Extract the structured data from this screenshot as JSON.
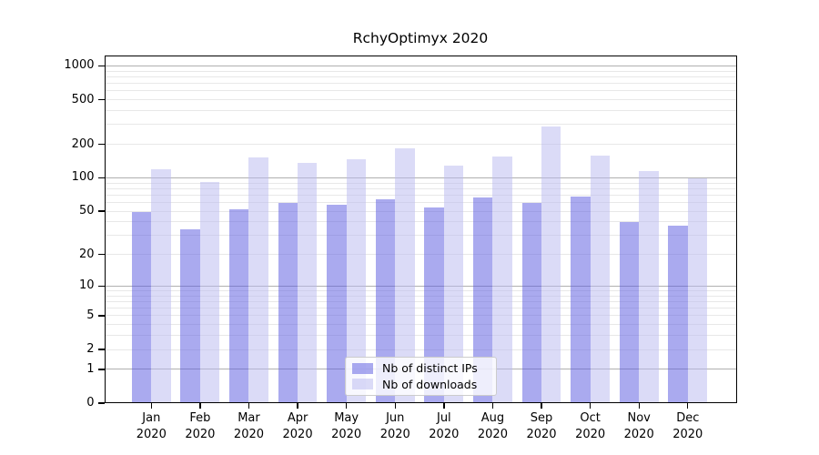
{
  "title": "RchyOptimyx 2020",
  "chart_data": {
    "type": "bar",
    "categories": [
      "Jan",
      "Feb",
      "Mar",
      "Apr",
      "May",
      "Jun",
      "Jul",
      "Aug",
      "Sep",
      "Oct",
      "Nov",
      "Dec"
    ],
    "category_year": "2020",
    "series": [
      {
        "name": "Nb of distinct IPs",
        "key": "distinct-ips",
        "fill_base": "#5555e0",
        "fill_alpha": 0.5,
        "apparent_color": "#aaaaef",
        "values": [
          49,
          34,
          52,
          60,
          57,
          64,
          54,
          66,
          59,
          68,
          40,
          37
        ]
      },
      {
        "name": "Nb of downloads",
        "key": "downloads",
        "fill_base": "#b8b8f0",
        "fill_alpha": 0.5,
        "apparent_color": "#dcdcf8",
        "values": [
          119,
          91,
          153,
          136,
          147,
          184,
          128,
          154,
          290,
          159,
          116,
          99
        ]
      }
    ],
    "yscale": "log1p",
    "ylim": [
      0,
      1238
    ],
    "yticks": [
      0,
      1,
      2,
      5,
      10,
      20,
      50,
      100,
      200,
      500,
      1000
    ],
    "grid": {
      "major_color": "#b0b0b0",
      "minor_color": "#e8e8e8",
      "major_values": [
        1,
        10,
        100,
        1000
      ],
      "minor_values": [
        2,
        3,
        4,
        5,
        6,
        7,
        8,
        9,
        20,
        30,
        40,
        50,
        60,
        70,
        80,
        90,
        200,
        300,
        400,
        500,
        600,
        700,
        800,
        900
      ]
    },
    "legend_position": "lower center",
    "spine_color": "#000000"
  }
}
